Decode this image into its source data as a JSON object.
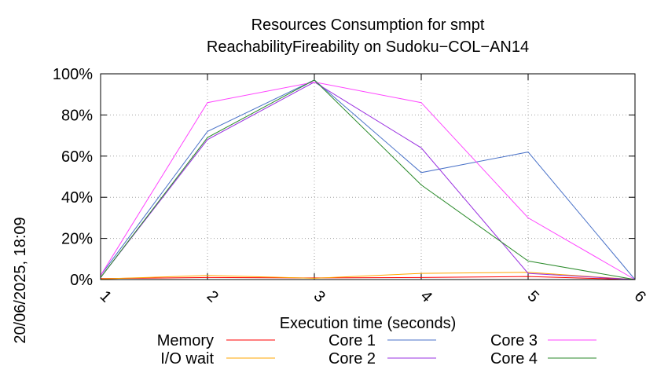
{
  "chart_data": {
    "type": "line",
    "title_line1": "Resources Consumption for smpt",
    "title_line2": "ReachabilityFireability on Sudoku−COL−AN14",
    "xlabel": "Execution time (seconds)",
    "ylabel": "",
    "side_label": "20/06/2025, 18:09",
    "x": [
      1,
      2,
      3,
      4,
      5,
      6
    ],
    "xlim": [
      1,
      6
    ],
    "ylim": [
      0,
      100
    ],
    "x_ticks": [
      "1",
      "2",
      "3",
      "4",
      "5",
      "6"
    ],
    "y_ticks": [
      "0%",
      "20%",
      "40%",
      "60%",
      "80%",
      "100%"
    ],
    "y_tick_values": [
      0,
      20,
      40,
      60,
      80,
      100
    ],
    "grid": true,
    "legend_position": "bottom",
    "series": [
      {
        "name": "Memory",
        "color": "#ff0000",
        "values": [
          0.5,
          1,
          0.8,
          1,
          1.5,
          0
        ]
      },
      {
        "name": "I/O wait",
        "color": "#ffa500",
        "values": [
          0.3,
          2,
          0.6,
          3,
          3.5,
          0
        ]
      },
      {
        "name": "Core 1",
        "color": "#4a72c8",
        "values": [
          2,
          72,
          97,
          52,
          62,
          0
        ]
      },
      {
        "name": "Core 2",
        "color": "#9a30e0",
        "values": [
          1,
          68,
          96,
          64,
          3,
          0
        ]
      },
      {
        "name": "Core 3",
        "color": "#ff44ff",
        "values": [
          2,
          86,
          96,
          86,
          30,
          0
        ]
      },
      {
        "name": "Core 4",
        "color": "#2a8a2a",
        "values": [
          1,
          69,
          97,
          46,
          9,
          0
        ]
      }
    ]
  }
}
